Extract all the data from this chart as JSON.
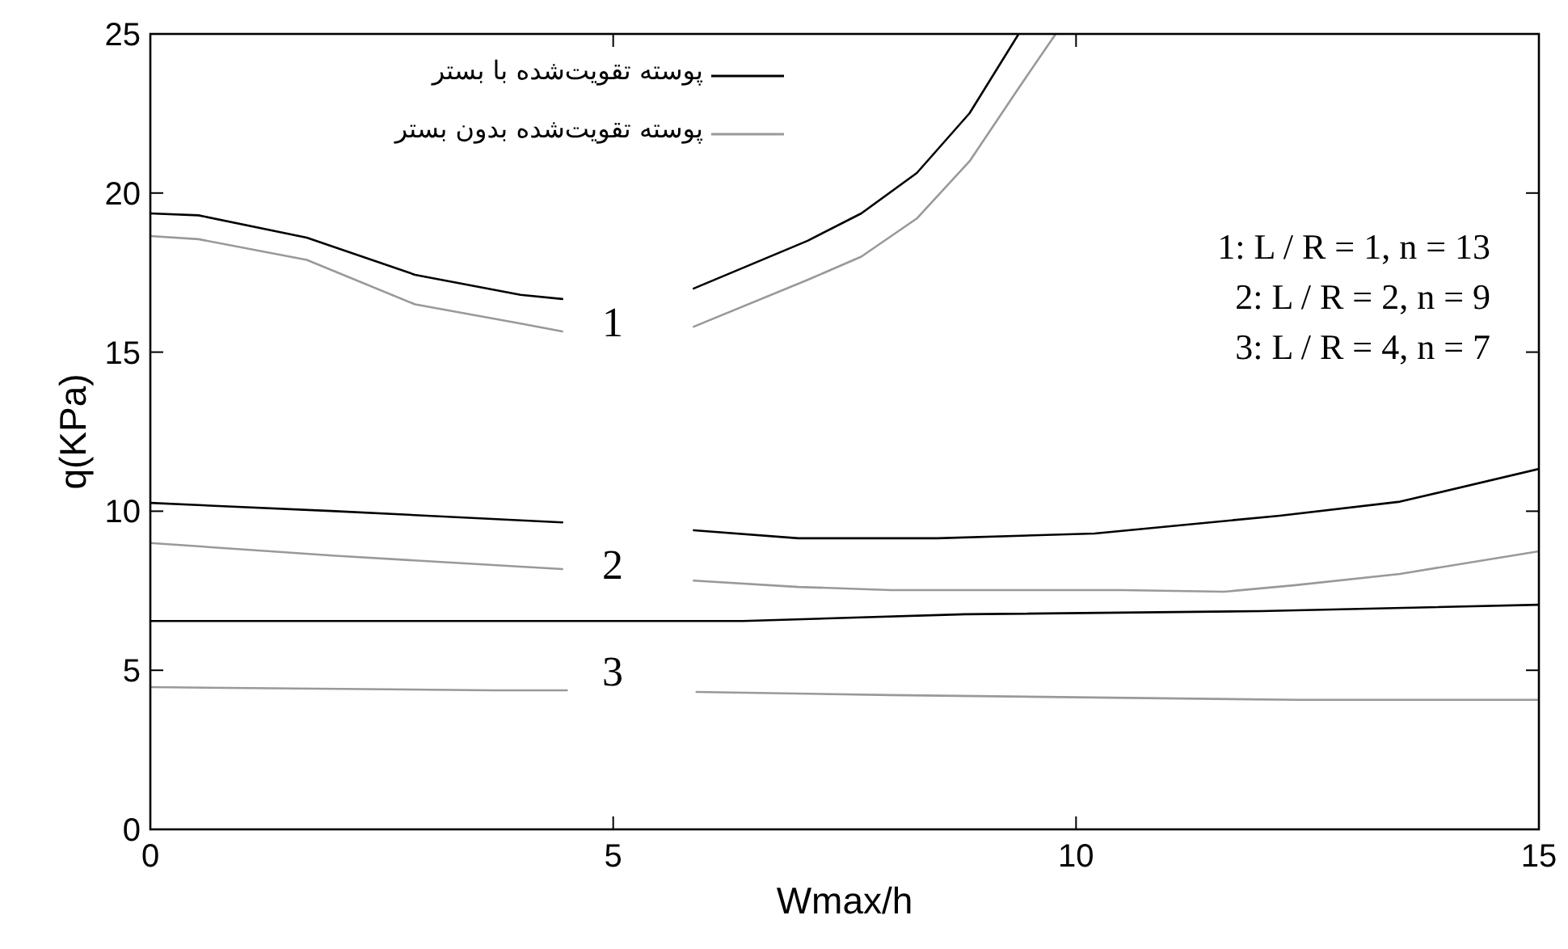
{
  "chart_data": {
    "type": "line",
    "xlabel": "Wmax/h",
    "ylabel": "q(KPa)",
    "xlim": [
      0,
      15
    ],
    "ylim": [
      0,
      25
    ],
    "xticks": [
      0,
      5,
      10,
      15
    ],
    "yticks": [
      0,
      5,
      10,
      15,
      20,
      25
    ],
    "grid": false,
    "legend": "top",
    "marker": "none",
    "series": [
      {
        "name": "پوسته تقویت‌شده با بستر",
        "color": "#000000",
        "line_style": "solid",
        "x": [
          0,
          0.52,
          1.69,
          2.86,
          4.0,
          4.45,
          null,
          5.87,
          7.1,
          7.68,
          8.28,
          8.85,
          9.38
        ],
        "values": [
          19.36,
          19.3,
          18.6,
          17.43,
          16.8,
          16.67,
          null,
          17.0,
          18.5,
          19.36,
          20.63,
          22.51,
          25
        ]
      },
      {
        "name": "پوسته تقویت‌شده بدون بستر",
        "color": "#999999",
        "line_style": "solid",
        "x": [
          0,
          0.52,
          1.69,
          2.86,
          4.0,
          4.45,
          null,
          5.87,
          7.1,
          7.68,
          8.28,
          8.85,
          9.38,
          9.78
        ],
        "values": [
          18.65,
          18.55,
          17.9,
          16.5,
          15.9,
          15.65,
          null,
          15.8,
          17.27,
          18.0,
          19.2,
          21.0,
          23.3,
          25
        ]
      },
      {
        "color": "#000000",
        "line_style": "solid",
        "x": [
          0,
          2.0,
          4.45,
          null,
          5.87,
          7.0,
          8.5,
          10.2,
          12.2,
          13.5,
          15
        ],
        "values": [
          10.26,
          10.0,
          9.65,
          null,
          9.4,
          9.15,
          9.15,
          9.3,
          9.86,
          10.3,
          11.33
        ]
      },
      {
        "color": "#999999",
        "line_style": "solid",
        "x": [
          0,
          2.0,
          4.45,
          null,
          5.87,
          7.0,
          8.0,
          10.5,
          11.6,
          12.35,
          13.5,
          15
        ],
        "values": [
          9.0,
          8.6,
          8.18,
          null,
          7.82,
          7.62,
          7.52,
          7.52,
          7.47,
          7.67,
          8.03,
          8.74
        ]
      },
      {
        "color": "#000000",
        "line_style": "solid",
        "x": [
          0,
          6.4,
          8.8,
          12.0,
          15
        ],
        "values": [
          6.55,
          6.55,
          6.76,
          6.86,
          7.06
        ]
      },
      {
        "color": "#999999",
        "line_style": "solid",
        "x": [
          0,
          3.7,
          4.5,
          null,
          5.9,
          8.0,
          12.4,
          15
        ],
        "values": [
          4.47,
          4.37,
          4.37,
          null,
          4.32,
          4.22,
          4.07,
          4.07
        ]
      }
    ],
    "annotations": [
      "1",
      "2",
      "3",
      "1: L / R = 1,  n = 13",
      "2: L / R = 2,  n = 9",
      "3: L / R = 4,  n = 7"
    ]
  }
}
